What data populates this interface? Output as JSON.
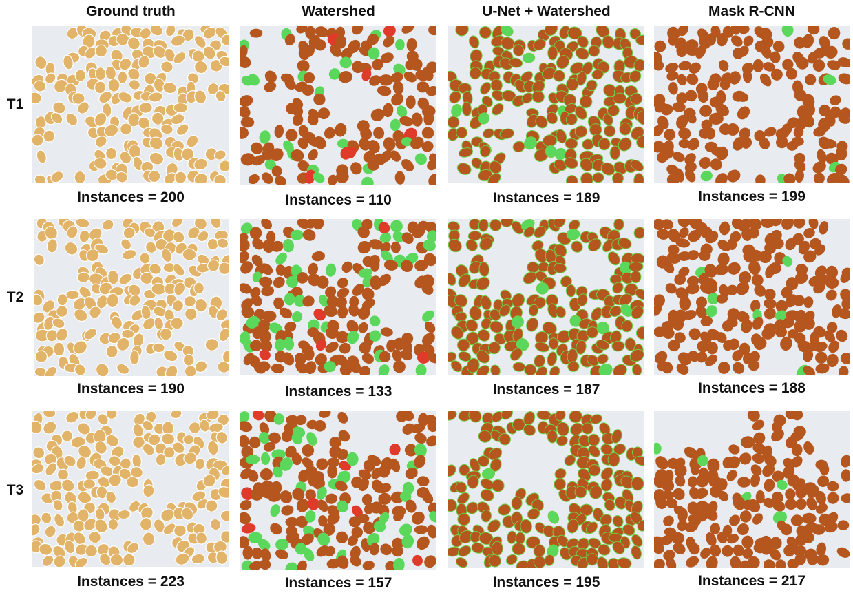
{
  "columns": [
    {
      "key": "gt",
      "title": "Ground truth",
      "style": "gt"
    },
    {
      "key": "ws",
      "title": "Watershed",
      "style": "ws"
    },
    {
      "key": "uw",
      "title": "U-Net + Watershed",
      "style": "uw"
    },
    {
      "key": "mr",
      "title": "Mask R-CNN",
      "style": "mr"
    }
  ],
  "rows": [
    {
      "label": "T1",
      "counts": [
        "Instances = 200",
        "Instances = 110",
        "Instances = 189",
        "Instances = 199"
      ]
    },
    {
      "label": "T2",
      "counts": [
        "Instances = 190",
        "Instances = 133",
        "Instances = 187",
        "Instances = 188"
      ]
    },
    {
      "label": "T3",
      "counts": [
        "Instances = 223",
        "Instances = 157",
        "Instances = 195",
        "Instances = 217"
      ]
    }
  ],
  "colors": {
    "background": "#e8ecf0",
    "ground_truth_seed": "#e2b46a",
    "ground_truth_outline": "#ffffff",
    "segmented_seed": "#b5561e",
    "missed_seed_green": "#5bd85b",
    "boundary_green": "#6fcf4a",
    "error_red": "#e03a2a"
  }
}
